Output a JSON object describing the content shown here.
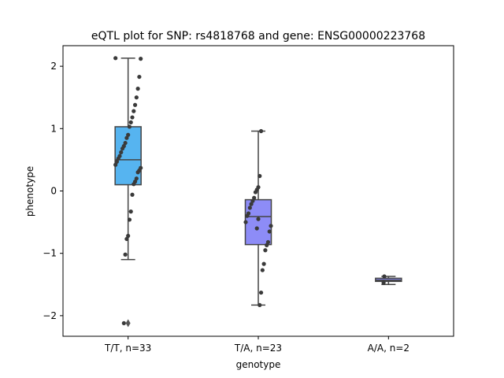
{
  "chart_data": {
    "type": "box",
    "title": "eQTL plot for SNP: rs4818768 and gene: ENSG00000223768",
    "xlabel": "genotype",
    "ylabel": "phenotype",
    "ylim": [
      -2.33,
      2.33
    ],
    "yticks": [
      -2,
      -1,
      0,
      1,
      2
    ],
    "grid": false,
    "categories": [
      "T/T, n=33",
      "T/A, n=23",
      "A/A, n=2"
    ],
    "colors": [
      "#56b4f0",
      "#8d8cf7",
      "#8d8cf7"
    ],
    "series": [
      {
        "category": "T/T, n=33",
        "box": {
          "whisker_low": -1.1,
          "q1": 0.1,
          "median": 0.5,
          "q3": 1.03,
          "whisker_high": 2.13
        },
        "outliers": [
          -2.12
        ],
        "points": [
          2.13,
          2.12,
          1.83,
          1.64,
          1.5,
          1.38,
          1.28,
          1.18,
          1.1,
          1.03,
          0.9,
          0.85,
          0.77,
          0.72,
          0.68,
          0.62,
          0.56,
          0.52,
          0.47,
          0.42,
          0.37,
          0.33,
          0.3,
          0.2,
          0.15,
          0.11,
          -0.06,
          -0.33,
          -0.46,
          -0.72,
          -0.77,
          -1.02,
          -2.12
        ]
      },
      {
        "category": "T/A, n=23",
        "box": {
          "whisker_low": -1.83,
          "q1": -0.86,
          "median": -0.41,
          "q3": -0.14,
          "whisker_high": 0.96
        },
        "outliers": [],
        "points": [
          0.96,
          0.24,
          0.06,
          0.02,
          -0.02,
          -0.11,
          -0.16,
          -0.21,
          -0.27,
          -0.36,
          -0.4,
          -0.5,
          -0.56,
          -0.65,
          -0.82,
          -0.87,
          -0.95,
          -1.17,
          -1.27,
          -1.63,
          -1.83,
          -0.45,
          -0.6
        ]
      },
      {
        "category": "A/A, n=2",
        "box": {
          "whisker_low": -1.5,
          "q1": -1.45,
          "median": -1.43,
          "q3": -1.4,
          "whisker_high": -1.37
        },
        "outliers": [],
        "points": [
          -1.37,
          -1.47
        ]
      }
    ]
  }
}
